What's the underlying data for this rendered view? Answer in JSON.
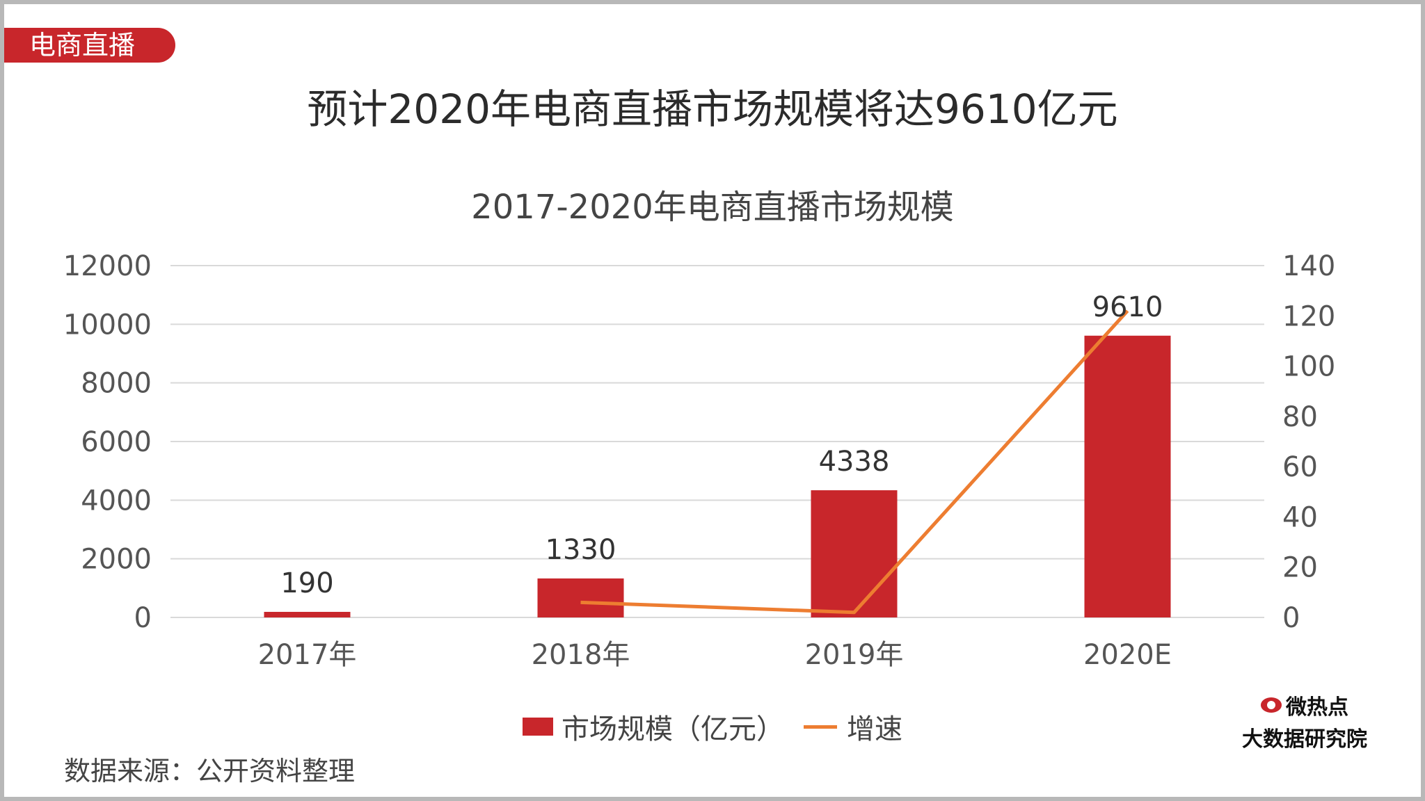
{
  "tag": "电商直播",
  "headline": "预计2020年电商直播市场规模将达9610亿元",
  "source": "数据来源：公开资料整理",
  "brand": {
    "line1": "微热点",
    "line2": "大数据研究院",
    "icon": "weibo-eye-icon"
  },
  "colors": {
    "bar": "#c8262b",
    "line": "#ed7d31",
    "grid": "#d9d9d9"
  },
  "chart_data": {
    "type": "bar",
    "title": "2017-2020年电商直播市场规模",
    "categories": [
      "2017年",
      "2018年",
      "2019年",
      "2020E"
    ],
    "ylim": [
      0,
      12000
    ],
    "yticks": [
      0,
      2000,
      4000,
      6000,
      8000,
      10000,
      12000
    ],
    "y2lim": [
      0,
      140
    ],
    "y2ticks": [
      0,
      20,
      40,
      60,
      80,
      100,
      120,
      140
    ],
    "grid": true,
    "legend_position": "bottom",
    "series": [
      {
        "name": "市场规模（亿元）",
        "type": "bar",
        "axis": "left",
        "values": [
          190,
          1330,
          4338,
          9610
        ],
        "labels": [
          "190",
          "1330",
          "4338",
          "9610"
        ]
      },
      {
        "name": "增速",
        "type": "line",
        "axis": "right",
        "values": [
          null,
          6,
          2,
          122
        ]
      }
    ]
  }
}
